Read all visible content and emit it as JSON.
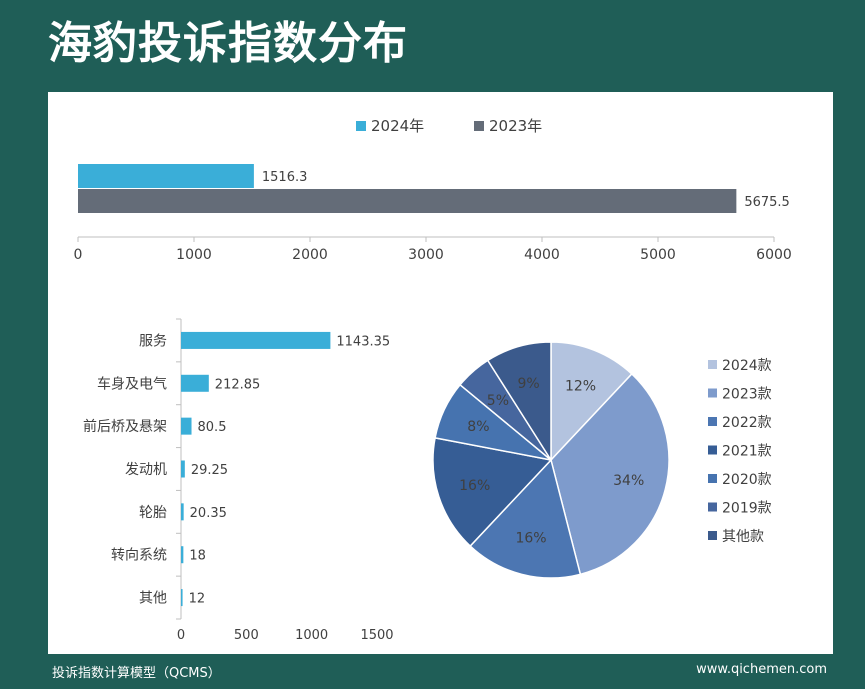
{
  "page": {
    "title": "海豹投诉指数分布",
    "footer_left": "投诉指数计算模型（QCMS）",
    "footer_right": "www.qichemen.com"
  },
  "colors": {
    "background": "#1f5e57",
    "year2024": "#3aaed8",
    "year2023": "#646c78",
    "category_bar": "#3aaed8",
    "pie": [
      "#b3c3df",
      "#7e9bcc",
      "#4c76b2",
      "#365d95",
      "#4673af",
      "#46669e",
      "#3b5a8c"
    ]
  },
  "chart_data": [
    {
      "type": "bar",
      "orientation": "horizontal",
      "series": [
        {
          "name": "2024年",
          "values": [
            1516.3
          ]
        },
        {
          "name": "2023年",
          "values": [
            5675.5
          ]
        }
      ],
      "data_labels": [
        "1516.3",
        "5675.5"
      ],
      "xlim": [
        0,
        6000
      ],
      "xticks": [
        "0",
        "1000",
        "2000",
        "3000",
        "4000",
        "5000",
        "6000"
      ],
      "legend": "top-center",
      "grid": false
    },
    {
      "type": "bar",
      "orientation": "horizontal",
      "categories": [
        "服务",
        "车身及电气",
        "前后桥及悬架",
        "发动机",
        "轮胎",
        "转向系统",
        "其他"
      ],
      "values": [
        1143.35,
        212.85,
        80.5,
        29.25,
        20.35,
        18,
        12
      ],
      "data_labels": [
        "1143.35",
        "212.85",
        "80.5",
        "29.25",
        "20.35",
        "18",
        "12"
      ],
      "xlim": [
        0,
        1500
      ],
      "xticks": [
        "0",
        "500",
        "1000",
        "1500"
      ],
      "grid": false
    },
    {
      "type": "pie",
      "labels": [
        "2024款",
        "2023款",
        "2022款",
        "2021款",
        "2020款",
        "2019款",
        "其他款"
      ],
      "values": [
        12,
        34,
        16,
        16,
        8,
        5,
        9
      ],
      "value_labels": [
        "12%",
        "34%",
        "16%",
        "16%",
        "8%",
        "5%",
        "9%"
      ],
      "legend": "right"
    }
  ]
}
